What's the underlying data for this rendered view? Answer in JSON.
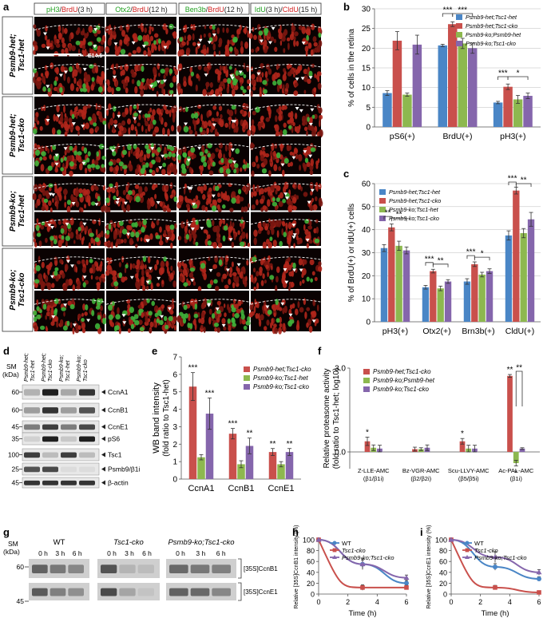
{
  "colors": {
    "blue": "#4a86c6",
    "red": "#c9504c",
    "green": "#8db84f",
    "purple": "#8566ac",
    "cell_red": "#a8231a",
    "cell_green": "#3fb23a"
  },
  "panels": {
    "a": "a",
    "b": "b",
    "c": "c",
    "d": "d",
    "e": "e",
    "f": "f",
    "g": "g",
    "h": "h",
    "i": "i"
  },
  "panel_a": {
    "column_headers": [
      {
        "green": "pH3",
        "red": "BrdU",
        "suffix": "(3 h)"
      },
      {
        "green": "Otx2",
        "red": "BrdU",
        "suffix": "(12 h)"
      },
      {
        "green": "Ben3b",
        "red": "BrdU",
        "suffix": "(12 h)"
      },
      {
        "green": "IdU",
        "suffix1": "(3 h)/",
        "red": "CldU",
        "suffix": "(15 h)"
      }
    ],
    "row_labels": [
      [
        "Psmb9-het;",
        "Tsc1-het"
      ],
      [
        "Psmb9-het;",
        "Tsc1-cko"
      ],
      [
        "Psmb9-ko;",
        "Tsc1-het"
      ],
      [
        "Psmb9-ko;",
        "Tsc1-cko"
      ]
    ],
    "stage_label": "E14.5"
  },
  "chart_data": [
    {
      "panel": "b",
      "type": "bar",
      "ylabel": "% of cells in the retina",
      "categories": [
        "pS6(+)",
        "BrdU(+)",
        "pH3(+)"
      ],
      "ylim": [
        0,
        30
      ],
      "yticks": [
        0,
        5,
        10,
        15,
        20,
        25,
        30
      ],
      "legend_position": "top-right",
      "series": [
        {
          "name": "Psmb9-het;Tsc1-het",
          "values": [
            8.6,
            20.7,
            6.2
          ],
          "errors": [
            0.6,
            0.3,
            0.3
          ]
        },
        {
          "name": "Psmb9-het;Tsc1-cko",
          "values": [
            21.9,
            26.1,
            10.2
          ],
          "errors": [
            2.3,
            0.6,
            0.7
          ]
        },
        {
          "name": "Psmb9-ko;Psmb9-het",
          "values": [
            8.2,
            21.2,
            7.0
          ],
          "errors": [
            0.4,
            1.3,
            1.0
          ]
        },
        {
          "name": "Psmb9-ko;Tsc1-cko",
          "values": [
            20.9,
            20.0,
            7.9
          ],
          "errors": [
            2.4,
            1.3,
            0.7
          ]
        }
      ],
      "significance": [
        {
          "category": "BrdU(+)",
          "labels": [
            "***",
            "***"
          ]
        },
        {
          "category": "pH3(+)",
          "labels": [
            "***",
            "*"
          ]
        }
      ]
    },
    {
      "panel": "c",
      "type": "bar",
      "ylabel": "% of BrdU(+) or IdU(+) cells",
      "categories": [
        "pH3(+)",
        "Otx2(+)",
        "Brn3b(+)",
        "CldU(+)"
      ],
      "ylim": [
        0,
        60
      ],
      "yticks": [
        0,
        10,
        20,
        30,
        40,
        50,
        60
      ],
      "legend_position": "top-left",
      "series": [
        {
          "name": "Psmb9-het;Tsc1-het",
          "values": [
            32,
            15,
            17.5,
            37.5
          ],
          "errors": [
            1.5,
            0.8,
            1.2,
            2.0
          ]
        },
        {
          "name": "Psmb9-het;Tsc1-cko",
          "values": [
            41,
            22,
            25,
            57
          ],
          "errors": [
            1.5,
            0.8,
            1.0,
            1.5
          ]
        },
        {
          "name": "Psmb9-ko;Tsc1-het",
          "values": [
            33,
            14.5,
            20.5,
            38.5
          ],
          "errors": [
            2.0,
            1.0,
            1.0,
            2.0
          ]
        },
        {
          "name": "Psmb9-ko;Tsc1-cko",
          "values": [
            31,
            17.5,
            22,
            44.5
          ],
          "errors": [
            1.5,
            0.8,
            1.0,
            3.0
          ]
        }
      ],
      "significance": [
        {
          "category": "pH3(+)",
          "labels": [
            "**",
            "**"
          ]
        },
        {
          "category": "Otx2(+)",
          "labels": [
            "***",
            "**"
          ]
        },
        {
          "category": "Brn3b(+)",
          "labels": [
            "***",
            "*"
          ]
        },
        {
          "category": "CldU(+)",
          "labels": [
            "***",
            "**"
          ]
        }
      ]
    },
    {
      "panel": "e",
      "type": "bar",
      "ylabel": "WB band intensity",
      "ylabel2": "(fold ratio to Tsc1-het)",
      "categories": [
        "CcnA1",
        "CcnB1",
        "CcnE1"
      ],
      "ylim": [
        0,
        7
      ],
      "yticks": [
        0,
        1,
        2,
        3,
        4,
        5,
        6,
        7
      ],
      "legend_position": "top-right",
      "series": [
        {
          "name": "Psmb9-het;Tsc1-cko",
          "values": [
            5.3,
            2.6,
            1.55
          ],
          "errors": [
            0.8,
            0.3,
            0.2
          ]
        },
        {
          "name": "Psmb9-ko;Tsc1-het",
          "values": [
            1.25,
            0.85,
            0.85
          ],
          "errors": [
            0.15,
            0.2,
            0.15
          ]
        },
        {
          "name": "Psmb9-ko;Tsc1-cko",
          "values": [
            3.75,
            1.9,
            1.55
          ],
          "errors": [
            0.9,
            0.45,
            0.2
          ]
        }
      ],
      "significance_labels": [
        [
          "***",
          "",
          "***"
        ],
        [
          "***",
          "",
          "**"
        ],
        [
          "**",
          "",
          "**"
        ]
      ]
    },
    {
      "panel": "f",
      "type": "bar",
      "ylabel": "Relative proteasome activity",
      "ylabel2": "(fold ratio to Tsc1-het; log10)",
      "categories": [
        "Z-LLE-AMC",
        "Bz-VGR-AMC",
        "Scu-LLVY-AMC",
        "Ac-PAL-AMC"
      ],
      "sublabels": [
        "(β1/β1i)",
        "(β2/β2i)",
        "(β5/β5i)",
        "(β1i)"
      ],
      "ylim": [
        -0.6,
        3.0
      ],
      "yticks": [
        0.0,
        3.0
      ],
      "legend_position": "top-left",
      "series": [
        {
          "name": "Psmb9-het;Tsc1-cko",
          "values": [
            0.38,
            0.1,
            0.38,
            2.72
          ],
          "errors": [
            0.15,
            0.07,
            0.1,
            0.05
          ]
        },
        {
          "name": "Psmb9-ko;Psmb9-het",
          "values": [
            0.15,
            0.1,
            0.12,
            -0.4
          ],
          "errors": [
            0.1,
            0.05,
            0.12,
            0.1
          ]
        },
        {
          "name": "Psmb9-ko;Tsc1-cko",
          "values": [
            0.12,
            0.15,
            0.12,
            0.12
          ],
          "errors": [
            0.12,
            0.1,
            0.12,
            0.03
          ]
        }
      ],
      "significance": [
        "*",
        "",
        "*",
        "**",
        "*",
        "**"
      ]
    },
    {
      "panel": "h",
      "type": "line",
      "xlabel": "Time (h)",
      "ylabel": "Relative [35S]CcnB1 intensity (%)",
      "x": [
        0,
        3,
        6
      ],
      "xlim": [
        0,
        6
      ],
      "ylim": [
        0,
        100
      ],
      "xticks": [
        0,
        2,
        4,
        6
      ],
      "yticks": [
        0,
        20,
        40,
        60,
        80,
        100
      ],
      "series": [
        {
          "name": "WT",
          "values": [
            100,
            55,
            20
          ],
          "errors": [
            0,
            8,
            5
          ]
        },
        {
          "name": "Tsc1-cko",
          "values": [
            100,
            12,
            12
          ],
          "errors": [
            0,
            5,
            4
          ]
        },
        {
          "name": "Psmb9-ko;Tsc1-cko",
          "values": [
            100,
            55,
            30
          ],
          "errors": [
            0,
            10,
            5
          ]
        }
      ]
    },
    {
      "panel": "i",
      "type": "line",
      "xlabel": "Time (h)",
      "ylabel": "Relative [35S]CcnE1 intensity (%)",
      "x": [
        0,
        3,
        6
      ],
      "xlim": [
        0,
        6
      ],
      "ylim": [
        0,
        100
      ],
      "xticks": [
        0,
        2,
        4,
        6
      ],
      "yticks": [
        0,
        20,
        40,
        60,
        80,
        100
      ],
      "series": [
        {
          "name": "WT",
          "values": [
            100,
            50,
            28
          ],
          "errors": [
            0,
            6,
            4
          ]
        },
        {
          "name": "Tsc1-cko",
          "values": [
            100,
            12,
            3
          ],
          "errors": [
            0,
            4,
            2
          ]
        },
        {
          "name": "Psmb9-ko;Tsc1-cko",
          "values": [
            100,
            68,
            40
          ],
          "errors": [
            0,
            10,
            5
          ]
        }
      ]
    }
  ],
  "panel_d": {
    "unit_label": [
      "SM",
      "(kDa)"
    ],
    "lane_labels": [
      [
        "Psmb9-het;",
        "Tsc1-het"
      ],
      [
        "Psmb9-het;",
        "Tsc1-cko"
      ],
      [
        "Psmb9-ko;",
        "Tsc1-het"
      ],
      [
        "Psmb9-ko;",
        "Tsc1-cko"
      ]
    ],
    "markers": [
      "60",
      "60",
      "45",
      "35",
      "100",
      "25",
      "45"
    ],
    "bands": [
      "CcnA1",
      "CcnB1",
      "CcnE1",
      "pS6",
      "Tsc1",
      "Psmb9/β1i",
      "β-actin"
    ]
  },
  "panel_g": {
    "unit_label": [
      "SM",
      "(kDa)"
    ],
    "groups": [
      "WT",
      "Tsc1-cko",
      "Psmb9-ko;Tsc1-cko"
    ],
    "times": [
      "0 h",
      "3 h",
      "6 h"
    ],
    "markers": [
      "60",
      "45"
    ],
    "bands": [
      "[35S]CcnB1",
      "[35S]CcnE1"
    ]
  }
}
